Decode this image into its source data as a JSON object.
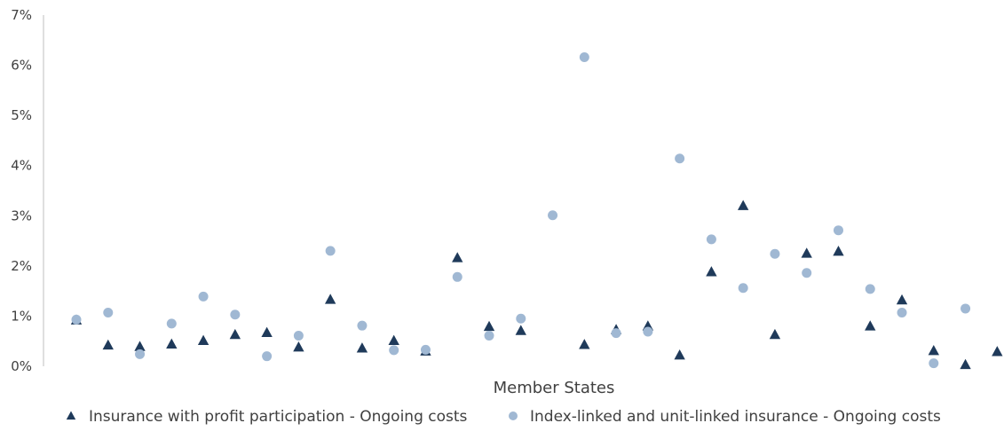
{
  "chart_data": {
    "type": "scatter",
    "title": "",
    "xlabel": "Member States",
    "ylabel": "",
    "ylim": [
      0,
      0.07
    ],
    "yticks": [
      {
        "value": 0.0,
        "label": "0%"
      },
      {
        "value": 0.01,
        "label": "1%"
      },
      {
        "value": 0.02,
        "label": "2%"
      },
      {
        "value": 0.03,
        "label": "3%"
      },
      {
        "value": 0.04,
        "label": "4%"
      },
      {
        "value": 0.05,
        "label": "5%"
      },
      {
        "value": 0.06,
        "label": "6%"
      },
      {
        "value": 0.07,
        "label": "7%"
      }
    ],
    "xticks_visible": false,
    "grid": false,
    "legend_position": "bottom",
    "category_count": 30,
    "series": [
      {
        "name": "Insurance with profit participation - Ongoing costs",
        "marker": "triangle",
        "color": "#1f3a5a",
        "values": [
          0.0092,
          0.0042,
          0.0039,
          0.0044,
          0.0051,
          0.0063,
          0.0067,
          0.0038,
          0.0133,
          0.0036,
          0.0051,
          0.003,
          0.0216,
          0.0079,
          0.0071,
          null,
          0.0043,
          0.0073,
          0.008,
          0.0022,
          0.0188,
          0.032,
          0.0063,
          0.0225,
          0.0229,
          0.008,
          0.0132,
          0.0031,
          0.0003,
          0.0029
        ]
      },
      {
        "name": "Index-linked and unit-linked insurance - Ongoing costs",
        "marker": "circle",
        "color": "#a0b8d3",
        "values": [
          0.0093,
          0.0107,
          0.0024,
          0.0085,
          0.0139,
          0.0103,
          0.002,
          0.0061,
          0.023,
          0.0081,
          0.0032,
          0.0033,
          0.0178,
          0.0061,
          0.0095,
          0.0301,
          0.0616,
          0.0066,
          0.0069,
          0.0414,
          0.0253,
          0.0156,
          0.0224,
          0.0186,
          0.0271,
          0.0154,
          0.0107,
          0.0006,
          0.0115,
          null
        ]
      }
    ]
  }
}
